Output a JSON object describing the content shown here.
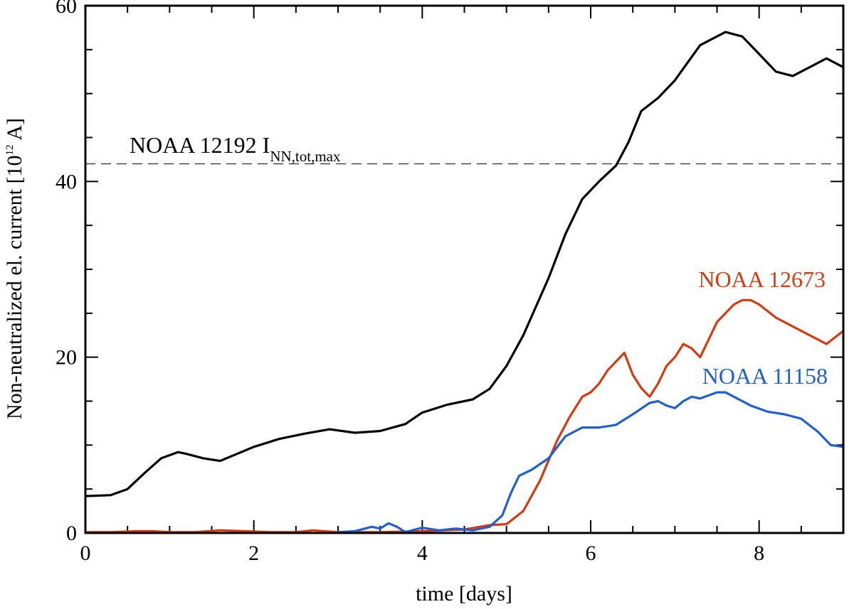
{
  "chart_data": {
    "type": "line",
    "xlabel": "time [days]",
    "ylabel_main": "Non-neutralized el. current [10",
    "ylabel_sup": "12",
    "ylabel_end": " A]",
    "xlim": [
      0,
      9
    ],
    "ylim": [
      0,
      60
    ],
    "x_ticks": [
      0,
      2,
      4,
      6,
      8
    ],
    "y_ticks": [
      0,
      20,
      40,
      60
    ],
    "x_minor_step": 0.5,
    "y_minor_step": 5,
    "reference_line": {
      "y": 42,
      "style": "dashed",
      "label_main": "NOAA 12192 I",
      "label_sub": "NN,tot,max"
    },
    "series": [
      {
        "name": "NOAA 12192",
        "color": "#000000",
        "x": [
          0,
          0.3,
          0.5,
          0.7,
          0.9,
          1.1,
          1.2,
          1.4,
          1.6,
          1.8,
          2.0,
          2.3,
          2.6,
          2.9,
          3.2,
          3.5,
          3.8,
          4.0,
          4.3,
          4.6,
          4.8,
          5.0,
          5.2,
          5.5,
          5.7,
          5.9,
          6.1,
          6.3,
          6.45,
          6.6,
          6.8,
          7.0,
          7.3,
          7.6,
          7.8,
          8.0,
          8.2,
          8.4,
          8.6,
          8.8,
          9.0
        ],
        "values": [
          4.2,
          4.3,
          5.0,
          6.8,
          8.5,
          9.2,
          9.0,
          8.5,
          8.2,
          9.0,
          9.8,
          10.7,
          11.3,
          11.8,
          11.4,
          11.6,
          12.4,
          13.7,
          14.6,
          15.2,
          16.4,
          19.0,
          22.5,
          29.0,
          34.0,
          38.0,
          40.0,
          41.8,
          44.5,
          48.0,
          49.5,
          51.5,
          55.5,
          57.0,
          56.5,
          54.5,
          52.5,
          52.0,
          53.0,
          54.0,
          53.0
        ]
      },
      {
        "name": "NOAA 12673",
        "color": "#d63a10",
        "x": [
          0,
          0.3,
          0.6,
          0.8,
          1.0,
          1.3,
          1.6,
          1.9,
          2.2,
          2.5,
          2.7,
          3.0,
          3.5,
          4.0,
          4.5,
          4.8,
          5.0,
          5.2,
          5.4,
          5.6,
          5.75,
          5.9,
          6.0,
          6.1,
          6.2,
          6.3,
          6.4,
          6.5,
          6.6,
          6.7,
          6.8,
          6.9,
          7.0,
          7.1,
          7.2,
          7.3,
          7.4,
          7.5,
          7.6,
          7.7,
          7.8,
          7.9,
          8.0,
          8.2,
          8.4,
          8.6,
          8.8,
          9.0
        ],
        "values": [
          0.1,
          0.1,
          0.2,
          0.2,
          0.1,
          0.1,
          0.3,
          0.2,
          0.1,
          0.1,
          0.3,
          0.1,
          0.1,
          0.2,
          0.4,
          0.9,
          1.0,
          2.5,
          6.0,
          10.5,
          13.2,
          15.5,
          16.0,
          17.0,
          18.5,
          19.5,
          20.5,
          18.0,
          16.5,
          15.5,
          17.0,
          19.0,
          20.0,
          21.5,
          21.0,
          20.0,
          22.0,
          24.0,
          25.0,
          26.0,
          26.5,
          26.5,
          26.0,
          24.5,
          23.5,
          22.5,
          21.5,
          23.0
        ]
      },
      {
        "name": "NOAA 11158",
        "color": "#1f5fd0",
        "x": [
          3.0,
          3.2,
          3.4,
          3.5,
          3.6,
          3.7,
          3.8,
          4.0,
          4.2,
          4.4,
          4.6,
          4.8,
          4.95,
          5.05,
          5.15,
          5.3,
          5.5,
          5.7,
          5.9,
          6.1,
          6.3,
          6.5,
          6.7,
          6.8,
          6.9,
          7.0,
          7.1,
          7.2,
          7.3,
          7.5,
          7.6,
          7.7,
          7.9,
          8.1,
          8.3,
          8.5,
          8.7,
          8.85,
          9.0
        ],
        "values": [
          0.1,
          0.2,
          0.7,
          0.5,
          1.1,
          0.7,
          0.1,
          0.6,
          0.3,
          0.5,
          0.3,
          0.7,
          2.0,
          4.5,
          6.5,
          7.2,
          8.5,
          11.0,
          12.0,
          12.0,
          12.3,
          13.5,
          14.8,
          15.0,
          14.5,
          14.2,
          15.0,
          15.5,
          15.3,
          16.0,
          16.0,
          15.5,
          14.5,
          13.8,
          13.5,
          13.0,
          11.5,
          10.0,
          9.8
        ]
      }
    ],
    "labels": [
      {
        "series": "NOAA 12673",
        "text": "NOAA 12673",
        "color": "#d63a10"
      },
      {
        "series": "NOAA 11158",
        "text": "NOAA 11158",
        "color": "#1f5fd0"
      }
    ]
  }
}
